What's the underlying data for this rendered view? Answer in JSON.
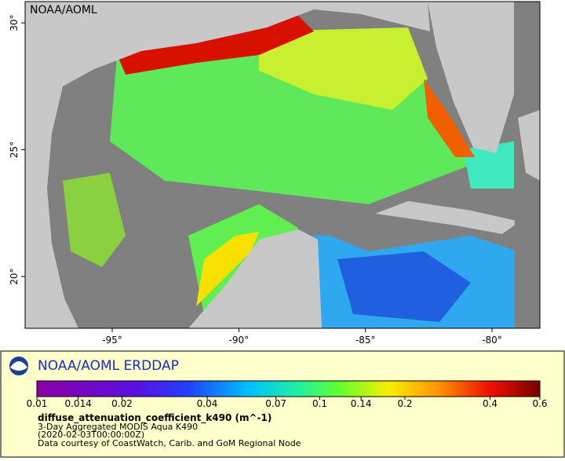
{
  "map": {
    "watermark": "NOAA/AOML",
    "xlim": [
      -98.44,
      -78.11
    ],
    "ylim": [
      17.96,
      30.84
    ],
    "xticks": [
      {
        "value": -95,
        "label": "-95°"
      },
      {
        "value": -90,
        "label": "-90°"
      },
      {
        "value": -85,
        "label": "-85°"
      },
      {
        "value": -80,
        "label": "-80°"
      }
    ],
    "yticks": [
      {
        "value": 20,
        "label": "20°"
      },
      {
        "value": 25,
        "label": "25°"
      },
      {
        "value": 30,
        "label": "30°"
      }
    ]
  },
  "legend": {
    "title": "NOAA/AOML ERDDAP",
    "colorbar": {
      "scale": "log",
      "lim": [
        0.01,
        0.6
      ],
      "ticks": [
        0.01,
        0.014,
        0.02,
        0.04,
        0.07,
        0.1,
        0.14,
        0.2,
        0.4,
        0.6
      ]
    },
    "variable": "diffuse_attenuation_coefficient_k490 (m^-1)",
    "lines": [
      "3-Day Aggregated MODIS Aqua K490",
      "(2020-02-03T00:00:00Z)",
      "Data courtesy of CoastWatch, Carib. and GoM Regional Node"
    ]
  }
}
